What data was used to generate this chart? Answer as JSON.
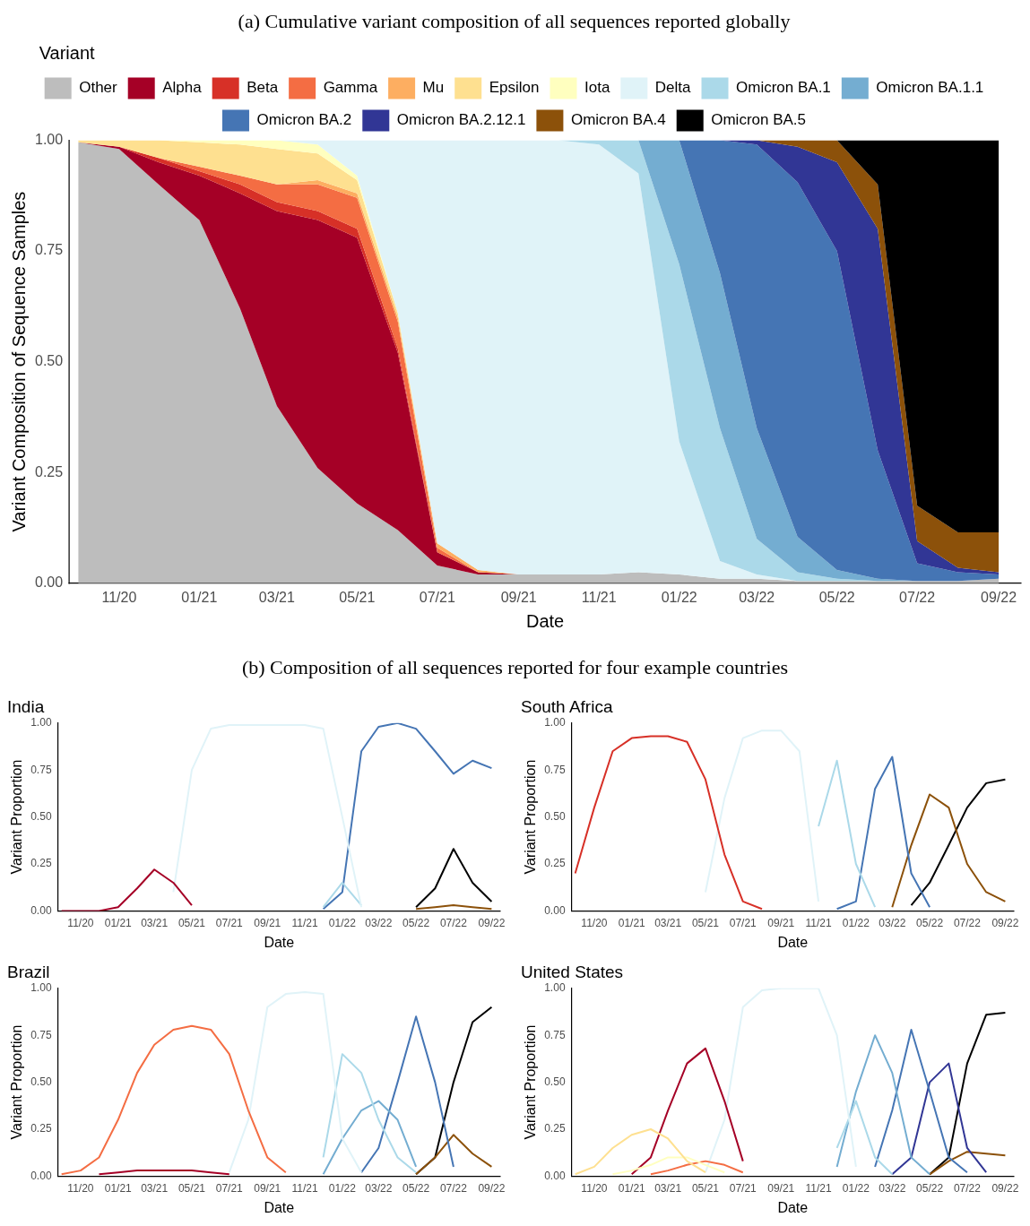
{
  "chart_data": [
    {
      "type": "area",
      "stacked": true,
      "title": "(a) Cumulative variant composition of all sequences reported globally",
      "xlabel": "Date",
      "ylabel": "Variant Composition of Sequence Samples",
      "legend_title": "Variant",
      "legend": "top",
      "marker": "none",
      "x": [
        "2020-10-01",
        "2020-11-01",
        "2020-12-01",
        "2021-01-01",
        "2021-02-01",
        "2021-03-01",
        "2021-04-01",
        "2021-05-01",
        "2021-06-01",
        "2021-07-01",
        "2021-08-01",
        "2021-09-01",
        "2021-10-01",
        "2021-11-01",
        "2021-12-01",
        "2022-01-01",
        "2022-02-01",
        "2022-03-01",
        "2022-04-01",
        "2022-05-01",
        "2022-06-01",
        "2022-07-01",
        "2022-08-01",
        "2022-09-01"
      ],
      "xlim": [
        "2020-09-24",
        "2022-09-18"
      ],
      "xticks": [
        {
          "value": "2020-11-01",
          "label": "11/20"
        },
        {
          "value": "2021-01-01",
          "label": "01/21"
        },
        {
          "value": "2021-03-01",
          "label": "03/21"
        },
        {
          "value": "2021-05-01",
          "label": "05/21"
        },
        {
          "value": "2021-07-01",
          "label": "07/21"
        },
        {
          "value": "2021-09-01",
          "label": "09/21"
        },
        {
          "value": "2021-11-01",
          "label": "11/21"
        },
        {
          "value": "2022-01-01",
          "label": "01/22"
        },
        {
          "value": "2022-03-01",
          "label": "03/22"
        },
        {
          "value": "2022-05-01",
          "label": "05/22"
        },
        {
          "value": "2022-07-01",
          "label": "07/22"
        },
        {
          "value": "2022-09-01",
          "label": "09/22"
        }
      ],
      "ylim": [
        0,
        1
      ],
      "yticks": [
        {
          "value": 0,
          "label": "0.00"
        },
        {
          "value": 0.25,
          "label": "0.25"
        },
        {
          "value": 0.5,
          "label": "0.50"
        },
        {
          "value": 0.75,
          "label": "0.75"
        },
        {
          "value": 1,
          "label": "1.00"
        }
      ],
      "series": [
        {
          "name": "Other",
          "color": "#bdbdbd",
          "values": [
            0.995,
            0.98,
            0.9,
            0.82,
            0.62,
            0.4,
            0.26,
            0.18,
            0.12,
            0.04,
            0.02,
            0.02,
            0.02,
            0.02,
            0.025,
            0.02,
            0.01,
            0.01,
            0.005,
            0.005,
            0.005,
            0.005,
            0.005,
            0.01
          ]
        },
        {
          "name": "Alpha",
          "color": "#a50026",
          "values": [
            0,
            0.005,
            0.05,
            0.1,
            0.26,
            0.44,
            0.56,
            0.6,
            0.4,
            0.03,
            0.005,
            0,
            null,
            null,
            null,
            null,
            null,
            null,
            null,
            null,
            null,
            null,
            null,
            null
          ]
        },
        {
          "name": "Beta",
          "color": "#d73027",
          "values": [
            null,
            0,
            0.01,
            0.01,
            0.02,
            0.02,
            0.02,
            0.02,
            0.01,
            0,
            null,
            null,
            null,
            null,
            null,
            null,
            null,
            null,
            null,
            null,
            null,
            null,
            null,
            null
          ]
        },
        {
          "name": "Gamma",
          "color": "#f46d43",
          "values": [
            null,
            null,
            0,
            0.01,
            0.02,
            0.04,
            0.06,
            0.07,
            0.06,
            0.01,
            0,
            null,
            null,
            null,
            null,
            null,
            null,
            null,
            null,
            null,
            null,
            null,
            null,
            null
          ]
        },
        {
          "name": "Mu",
          "color": "#fdae61",
          "values": [
            null,
            null,
            null,
            null,
            null,
            0,
            0.01,
            0.01,
            0.01,
            0.01,
            0.005,
            0,
            null,
            null,
            null,
            null,
            null,
            null,
            null,
            null,
            null,
            null,
            null,
            null
          ]
        },
        {
          "name": "Epsilon",
          "color": "#fee090",
          "values": [
            0.005,
            0.015,
            0.04,
            0.055,
            0.07,
            0.08,
            0.06,
            0.03,
            0.01,
            0,
            null,
            null,
            null,
            null,
            null,
            null,
            null,
            null,
            null,
            null,
            null,
            null,
            null,
            null
          ]
        },
        {
          "name": "Iota",
          "color": "#ffffbf",
          "values": [
            null,
            null,
            0,
            0.005,
            0.01,
            0.02,
            0.02,
            0.01,
            0,
            null,
            null,
            null,
            null,
            null,
            null,
            null,
            null,
            null,
            null,
            null,
            null,
            null,
            null,
            null
          ]
        },
        {
          "name": "Delta",
          "color": "#e0f3f8",
          "values": [
            null,
            null,
            null,
            null,
            null,
            0,
            0.01,
            0.08,
            0.39,
            0.91,
            0.97,
            0.98,
            0.98,
            0.97,
            0.9,
            0.3,
            0.04,
            0.01,
            0,
            null,
            null,
            null,
            null,
            null
          ]
        },
        {
          "name": "Omicron BA.1",
          "color": "#abd9e9",
          "values": [
            null,
            null,
            null,
            null,
            null,
            null,
            null,
            null,
            null,
            null,
            null,
            null,
            0,
            0.01,
            0.075,
            0.4,
            0.3,
            0.08,
            0.02,
            0.005,
            0,
            null,
            null,
            null
          ]
        },
        {
          "name": "Omicron BA.1.1",
          "color": "#74add1",
          "values": [
            null,
            null,
            null,
            null,
            null,
            null,
            null,
            null,
            null,
            null,
            null,
            null,
            null,
            null,
            0,
            0.28,
            0.35,
            0.25,
            0.08,
            0.02,
            0.005,
            0,
            null,
            null
          ]
        },
        {
          "name": "Omicron BA.2",
          "color": "#4575b4",
          "values": [
            null,
            null,
            null,
            null,
            null,
            null,
            null,
            null,
            null,
            null,
            null,
            null,
            null,
            null,
            null,
            0,
            0.3,
            0.64,
            0.8,
            0.72,
            0.29,
            0.04,
            0.02,
            0.01
          ]
        },
        {
          "name": "Omicron BA.2.12.1",
          "color": "#313695",
          "values": [
            null,
            null,
            null,
            null,
            null,
            null,
            null,
            null,
            null,
            null,
            null,
            null,
            null,
            null,
            null,
            null,
            0,
            0.01,
            0.08,
            0.2,
            0.5,
            0.05,
            0.01,
            0.005
          ]
        },
        {
          "name": "Omicron BA.4",
          "color": "#8c510a",
          "values": [
            null,
            null,
            null,
            null,
            null,
            null,
            null,
            null,
            null,
            null,
            null,
            null,
            null,
            null,
            null,
            null,
            null,
            0,
            0.015,
            0.05,
            0.1,
            0.08,
            0.08,
            0.09
          ]
        },
        {
          "name": "Omicron BA.5",
          "color": "#000000",
          "values": [
            null,
            null,
            null,
            null,
            null,
            null,
            null,
            null,
            null,
            null,
            null,
            null,
            null,
            null,
            null,
            null,
            null,
            null,
            null,
            0,
            0.1,
            0.825,
            0.885,
            0.885
          ]
        }
      ]
    },
    {
      "type": "line",
      "title": "India",
      "annotations": [
        "(b) Composition of all sequences reported for four example countries"
      ],
      "xlabel": "Date",
      "ylabel": "Variant Proportion",
      "marker": "none",
      "x": [
        "2020-10-01",
        "2020-11-01",
        "2020-12-01",
        "2021-01-01",
        "2021-02-01",
        "2021-03-01",
        "2021-04-01",
        "2021-05-01",
        "2021-06-01",
        "2021-07-01",
        "2021-08-01",
        "2021-09-01",
        "2021-10-01",
        "2021-11-01",
        "2021-12-01",
        "2022-01-01",
        "2022-02-01",
        "2022-03-01",
        "2022-04-01",
        "2022-05-01",
        "2022-06-01",
        "2022-07-01",
        "2022-08-01",
        "2022-09-01"
      ],
      "xlim": [
        "2020-09-25",
        "2022-09-15"
      ],
      "xticks": [
        {
          "value": "2020-11-01",
          "label": "11/20"
        },
        {
          "value": "2021-01-01",
          "label": "01/21"
        },
        {
          "value": "2021-03-01",
          "label": "03/21"
        },
        {
          "value": "2021-05-01",
          "label": "05/21"
        },
        {
          "value": "2021-07-01",
          "label": "07/21"
        },
        {
          "value": "2021-09-01",
          "label": "09/21"
        },
        {
          "value": "2021-11-01",
          "label": "11/21"
        },
        {
          "value": "2022-01-01",
          "label": "01/22"
        },
        {
          "value": "2022-03-01",
          "label": "03/22"
        },
        {
          "value": "2022-05-01",
          "label": "05/22"
        },
        {
          "value": "2022-07-01",
          "label": "07/22"
        },
        {
          "value": "2022-09-01",
          "label": "09/22"
        }
      ],
      "ylim": [
        0,
        1
      ],
      "yticks": [
        {
          "value": 0,
          "label": "0.00"
        },
        {
          "value": 0.25,
          "label": "0.25"
        },
        {
          "value": 0.5,
          "label": "0.50"
        },
        {
          "value": 0.75,
          "label": "0.75"
        },
        {
          "value": 1,
          "label": "1.00"
        }
      ],
      "series": [
        {
          "color": "#a50026",
          "values": [
            0,
            0,
            0,
            0.02,
            0.12,
            0.22,
            0.15,
            0.03,
            null,
            null,
            null,
            null,
            null,
            null,
            null,
            null,
            null,
            null,
            null,
            null,
            null,
            null,
            null,
            null
          ]
        },
        {
          "color": "#e0f3f8",
          "values": [
            null,
            null,
            null,
            null,
            null,
            null,
            0.1,
            0.75,
            0.97,
            0.99,
            0.99,
            0.99,
            0.99,
            0.99,
            0.97,
            0.5,
            0.02,
            null,
            null,
            null,
            null,
            null,
            null,
            null
          ]
        },
        {
          "color": "#abd9e9",
          "values": [
            null,
            null,
            null,
            null,
            null,
            null,
            null,
            null,
            null,
            null,
            null,
            null,
            null,
            null,
            0.02,
            0.15,
            0.03,
            null,
            null,
            null,
            null,
            null,
            null,
            null
          ]
        },
        {
          "color": "#4575b4",
          "values": [
            null,
            null,
            null,
            null,
            null,
            null,
            null,
            null,
            null,
            null,
            null,
            null,
            null,
            null,
            0.01,
            0.1,
            0.85,
            0.98,
            1,
            0.97,
            0.85,
            0.73,
            0.8,
            0.76
          ]
        },
        {
          "color": "#8c510a",
          "values": [
            null,
            null,
            null,
            null,
            null,
            null,
            null,
            null,
            null,
            null,
            null,
            null,
            null,
            null,
            null,
            null,
            null,
            null,
            null,
            0.01,
            0.02,
            0.03,
            0.02,
            0.01
          ]
        },
        {
          "color": "#000000",
          "values": [
            null,
            null,
            null,
            null,
            null,
            null,
            null,
            null,
            null,
            null,
            null,
            null,
            null,
            null,
            null,
            null,
            null,
            null,
            null,
            0.02,
            0.12,
            0.33,
            0.15,
            0.05
          ]
        }
      ]
    },
    {
      "type": "line",
      "title": "South Africa",
      "xlabel": "Date",
      "ylabel": "Variant Proportion",
      "marker": "none",
      "x": [
        "2020-10-01",
        "2020-11-01",
        "2020-12-01",
        "2021-01-01",
        "2021-02-01",
        "2021-03-01",
        "2021-04-01",
        "2021-05-01",
        "2021-06-01",
        "2021-07-01",
        "2021-08-01",
        "2021-09-01",
        "2021-10-01",
        "2021-11-01",
        "2021-12-01",
        "2022-01-01",
        "2022-02-01",
        "2022-03-01",
        "2022-04-01",
        "2022-05-01",
        "2022-06-01",
        "2022-07-01",
        "2022-08-01",
        "2022-09-01"
      ],
      "xlim": [
        "2020-09-25",
        "2022-09-15"
      ],
      "xticks": [
        {
          "value": "2020-11-01",
          "label": "11/20"
        },
        {
          "value": "2021-01-01",
          "label": "01/21"
        },
        {
          "value": "2021-03-01",
          "label": "03/21"
        },
        {
          "value": "2021-05-01",
          "label": "05/21"
        },
        {
          "value": "2021-07-01",
          "label": "07/21"
        },
        {
          "value": "2021-09-01",
          "label": "09/21"
        },
        {
          "value": "2021-11-01",
          "label": "11/21"
        },
        {
          "value": "2022-01-01",
          "label": "01/22"
        },
        {
          "value": "2022-03-01",
          "label": "03/22"
        },
        {
          "value": "2022-05-01",
          "label": "05/22"
        },
        {
          "value": "2022-07-01",
          "label": "07/22"
        },
        {
          "value": "2022-09-01",
          "label": "09/22"
        }
      ],
      "ylim": [
        0,
        1
      ],
      "yticks": [
        {
          "value": 0,
          "label": "0.00"
        },
        {
          "value": 0.25,
          "label": "0.25"
        },
        {
          "value": 0.5,
          "label": "0.50"
        },
        {
          "value": 0.75,
          "label": "0.75"
        },
        {
          "value": 1,
          "label": "1.00"
        }
      ],
      "series": [
        {
          "color": "#d73027",
          "values": [
            0.2,
            0.55,
            0.85,
            0.92,
            0.93,
            0.93,
            0.9,
            0.7,
            0.3,
            0.05,
            0.01,
            null,
            null,
            null,
            null,
            null,
            null,
            null,
            null,
            null,
            null,
            null,
            null,
            null
          ]
        },
        {
          "color": "#e0f3f8",
          "values": [
            null,
            null,
            null,
            null,
            null,
            null,
            null,
            0.1,
            0.6,
            0.92,
            0.96,
            0.96,
            0.85,
            0.05,
            null,
            null,
            null,
            null,
            null,
            null,
            null,
            null,
            null,
            null
          ]
        },
        {
          "color": "#abd9e9",
          "values": [
            null,
            null,
            null,
            null,
            null,
            null,
            null,
            null,
            null,
            null,
            null,
            null,
            null,
            0.45,
            0.8,
            0.25,
            0.02,
            null,
            null,
            null,
            null,
            null,
            null,
            null
          ]
        },
        {
          "color": "#4575b4",
          "values": [
            null,
            null,
            null,
            null,
            null,
            null,
            null,
            null,
            null,
            null,
            null,
            null,
            null,
            null,
            0.01,
            0.05,
            0.65,
            0.82,
            0.2,
            0.02,
            null,
            null,
            null,
            null
          ]
        },
        {
          "color": "#8c510a",
          "values": [
            null,
            null,
            null,
            null,
            null,
            null,
            null,
            null,
            null,
            null,
            null,
            null,
            null,
            null,
            null,
            null,
            null,
            0.02,
            0.35,
            0.62,
            0.55,
            0.25,
            0.1,
            0.05
          ]
        },
        {
          "color": "#000000",
          "values": [
            null,
            null,
            null,
            null,
            null,
            null,
            null,
            null,
            null,
            null,
            null,
            null,
            null,
            null,
            null,
            null,
            null,
            null,
            0.03,
            0.15,
            0.35,
            0.55,
            0.68,
            0.7
          ]
        }
      ]
    },
    {
      "type": "line",
      "title": "Brazil",
      "xlabel": "Date",
      "ylabel": "Variant Proportion",
      "marker": "none",
      "x": [
        "2020-10-01",
        "2020-11-01",
        "2020-12-01",
        "2021-01-01",
        "2021-02-01",
        "2021-03-01",
        "2021-04-01",
        "2021-05-01",
        "2021-06-01",
        "2021-07-01",
        "2021-08-01",
        "2021-09-01",
        "2021-10-01",
        "2021-11-01",
        "2021-12-01",
        "2022-01-01",
        "2022-02-01",
        "2022-03-01",
        "2022-04-01",
        "2022-05-01",
        "2022-06-01",
        "2022-07-01",
        "2022-08-01",
        "2022-09-01"
      ],
      "xlim": [
        "2020-09-25",
        "2022-09-15"
      ],
      "xticks": [
        {
          "value": "2020-11-01",
          "label": "11/20"
        },
        {
          "value": "2021-01-01",
          "label": "01/21"
        },
        {
          "value": "2021-03-01",
          "label": "03/21"
        },
        {
          "value": "2021-05-01",
          "label": "05/21"
        },
        {
          "value": "2021-07-01",
          "label": "07/21"
        },
        {
          "value": "2021-09-01",
          "label": "09/21"
        },
        {
          "value": "2021-11-01",
          "label": "11/21"
        },
        {
          "value": "2022-01-01",
          "label": "01/22"
        },
        {
          "value": "2022-03-01",
          "label": "03/22"
        },
        {
          "value": "2022-05-01",
          "label": "05/22"
        },
        {
          "value": "2022-07-01",
          "label": "07/22"
        },
        {
          "value": "2022-09-01",
          "label": "09/22"
        }
      ],
      "ylim": [
        0,
        1
      ],
      "yticks": [
        {
          "value": 0,
          "label": "0.00"
        },
        {
          "value": 0.25,
          "label": "0.25"
        },
        {
          "value": 0.5,
          "label": "0.50"
        },
        {
          "value": 0.75,
          "label": "0.75"
        },
        {
          "value": 1,
          "label": "1.00"
        }
      ],
      "series": [
        {
          "color": "#a50026",
          "values": [
            null,
            null,
            0.01,
            0.02,
            0.03,
            0.03,
            0.03,
            0.03,
            0.02,
            0.01,
            null,
            null,
            null,
            null,
            null,
            null,
            null,
            null,
            null,
            null,
            null,
            null,
            null,
            null
          ]
        },
        {
          "color": "#f46d43",
          "values": [
            0.01,
            0.03,
            0.1,
            0.3,
            0.55,
            0.7,
            0.78,
            0.8,
            0.78,
            0.65,
            0.35,
            0.1,
            0.02,
            null,
            null,
            null,
            null,
            null,
            null,
            null,
            null,
            null,
            null,
            null
          ]
        },
        {
          "color": "#e0f3f8",
          "values": [
            null,
            null,
            null,
            null,
            null,
            null,
            null,
            null,
            null,
            0.02,
            0.3,
            0.9,
            0.97,
            0.98,
            0.97,
            0.2,
            0.02,
            null,
            null,
            null,
            null,
            null,
            null,
            null
          ]
        },
        {
          "color": "#abd9e9",
          "values": [
            null,
            null,
            null,
            null,
            null,
            null,
            null,
            null,
            null,
            null,
            null,
            null,
            null,
            null,
            0.1,
            0.65,
            0.55,
            0.3,
            0.1,
            0.02,
            null,
            null,
            null,
            null
          ]
        },
        {
          "color": "#74add1",
          "values": [
            null,
            null,
            null,
            null,
            null,
            null,
            null,
            null,
            null,
            null,
            null,
            null,
            null,
            null,
            0.01,
            0.2,
            0.35,
            0.4,
            0.3,
            0.05,
            null,
            null,
            null,
            null
          ]
        },
        {
          "color": "#4575b4",
          "values": [
            null,
            null,
            null,
            null,
            null,
            null,
            null,
            null,
            null,
            null,
            null,
            null,
            null,
            null,
            null,
            null,
            0.02,
            0.15,
            0.5,
            0.85,
            0.5,
            0.05,
            null,
            null
          ]
        },
        {
          "color": "#8c510a",
          "values": [
            null,
            null,
            null,
            null,
            null,
            null,
            null,
            null,
            null,
            null,
            null,
            null,
            null,
            null,
            null,
            null,
            null,
            null,
            null,
            0.01,
            0.1,
            0.22,
            0.12,
            0.05
          ]
        },
        {
          "color": "#000000",
          "values": [
            null,
            null,
            null,
            null,
            null,
            null,
            null,
            null,
            null,
            null,
            null,
            null,
            null,
            null,
            null,
            null,
            null,
            null,
            null,
            0.01,
            0.1,
            0.5,
            0.82,
            0.9
          ]
        }
      ]
    },
    {
      "type": "line",
      "title": "United States",
      "xlabel": "Date",
      "ylabel": "Variant Proportion",
      "marker": "none",
      "x": [
        "2020-10-01",
        "2020-11-01",
        "2020-12-01",
        "2021-01-01",
        "2021-02-01",
        "2021-03-01",
        "2021-04-01",
        "2021-05-01",
        "2021-06-01",
        "2021-07-01",
        "2021-08-01",
        "2021-09-01",
        "2021-10-01",
        "2021-11-01",
        "2021-12-01",
        "2022-01-01",
        "2022-02-01",
        "2022-03-01",
        "2022-04-01",
        "2022-05-01",
        "2022-06-01",
        "2022-07-01",
        "2022-08-01",
        "2022-09-01"
      ],
      "xlim": [
        "2020-09-25",
        "2022-09-15"
      ],
      "xticks": [
        {
          "value": "2020-11-01",
          "label": "11/20"
        },
        {
          "value": "2021-01-01",
          "label": "01/21"
        },
        {
          "value": "2021-03-01",
          "label": "03/21"
        },
        {
          "value": "2021-05-01",
          "label": "05/21"
        },
        {
          "value": "2021-07-01",
          "label": "07/21"
        },
        {
          "value": "2021-09-01",
          "label": "09/21"
        },
        {
          "value": "2021-11-01",
          "label": "11/21"
        },
        {
          "value": "2022-01-01",
          "label": "01/22"
        },
        {
          "value": "2022-03-01",
          "label": "03/22"
        },
        {
          "value": "2022-05-01",
          "label": "05/22"
        },
        {
          "value": "2022-07-01",
          "label": "07/22"
        },
        {
          "value": "2022-09-01",
          "label": "09/22"
        }
      ],
      "ylim": [
        0,
        1
      ],
      "yticks": [
        {
          "value": 0,
          "label": "0.00"
        },
        {
          "value": 0.25,
          "label": "0.25"
        },
        {
          "value": 0.5,
          "label": "0.50"
        },
        {
          "value": 0.75,
          "label": "0.75"
        },
        {
          "value": 1,
          "label": "1.00"
        }
      ],
      "series": [
        {
          "color": "#fee090",
          "values": [
            0.01,
            0.05,
            0.15,
            0.22,
            0.25,
            0.2,
            0.08,
            0.02,
            null,
            null,
            null,
            null,
            null,
            null,
            null,
            null,
            null,
            null,
            null,
            null,
            null,
            null,
            null,
            null
          ]
        },
        {
          "color": "#ffffbf",
          "values": [
            null,
            null,
            0.01,
            0.03,
            0.06,
            0.1,
            0.1,
            0.06,
            0.02,
            null,
            null,
            null,
            null,
            null,
            null,
            null,
            null,
            null,
            null,
            null,
            null,
            null,
            null,
            null
          ]
        },
        {
          "color": "#f46d43",
          "values": [
            null,
            null,
            null,
            null,
            0.01,
            0.03,
            0.06,
            0.08,
            0.06,
            0.02,
            null,
            null,
            null,
            null,
            null,
            null,
            null,
            null,
            null,
            null,
            null,
            null,
            null,
            null
          ]
        },
        {
          "color": "#a50026",
          "values": [
            null,
            null,
            null,
            0.01,
            0.1,
            0.35,
            0.6,
            0.68,
            0.4,
            0.08,
            null,
            null,
            null,
            null,
            null,
            null,
            null,
            null,
            null,
            null,
            null,
            null,
            null,
            null
          ]
        },
        {
          "color": "#e0f3f8",
          "values": [
            null,
            null,
            null,
            null,
            null,
            null,
            null,
            0.02,
            0.3,
            0.9,
            0.99,
            1,
            1,
            1,
            0.75,
            0.05,
            null,
            null,
            null,
            null,
            null,
            null,
            null,
            null
          ]
        },
        {
          "color": "#abd9e9",
          "values": [
            null,
            null,
            null,
            null,
            null,
            null,
            null,
            null,
            null,
            null,
            null,
            null,
            null,
            null,
            0.15,
            0.4,
            0.1,
            0.01,
            null,
            null,
            null,
            null,
            null,
            null
          ]
        },
        {
          "color": "#74add1",
          "values": [
            null,
            null,
            null,
            null,
            null,
            null,
            null,
            null,
            null,
            null,
            null,
            null,
            null,
            null,
            0.05,
            0.45,
            0.75,
            0.55,
            0.1,
            0.01,
            null,
            null,
            null,
            null
          ]
        },
        {
          "color": "#4575b4",
          "values": [
            null,
            null,
            null,
            null,
            null,
            null,
            null,
            null,
            null,
            null,
            null,
            null,
            null,
            null,
            null,
            null,
            0.05,
            0.35,
            0.78,
            0.45,
            0.1,
            0.02,
            null,
            null
          ]
        },
        {
          "color": "#313695",
          "values": [
            null,
            null,
            null,
            null,
            null,
            null,
            null,
            null,
            null,
            null,
            null,
            null,
            null,
            null,
            null,
            null,
            null,
            0.01,
            0.1,
            0.5,
            0.6,
            0.15,
            0.02,
            null
          ]
        },
        {
          "color": "#8c510a",
          "values": [
            null,
            null,
            null,
            null,
            null,
            null,
            null,
            null,
            null,
            null,
            null,
            null,
            null,
            null,
            null,
            null,
            null,
            null,
            null,
            0.01,
            0.08,
            0.13,
            0.12,
            0.11
          ]
        },
        {
          "color": "#000000",
          "values": [
            null,
            null,
            null,
            null,
            null,
            null,
            null,
            null,
            null,
            null,
            null,
            null,
            null,
            null,
            null,
            null,
            null,
            null,
            null,
            0.01,
            0.1,
            0.6,
            0.86,
            0.87
          ]
        }
      ]
    }
  ]
}
